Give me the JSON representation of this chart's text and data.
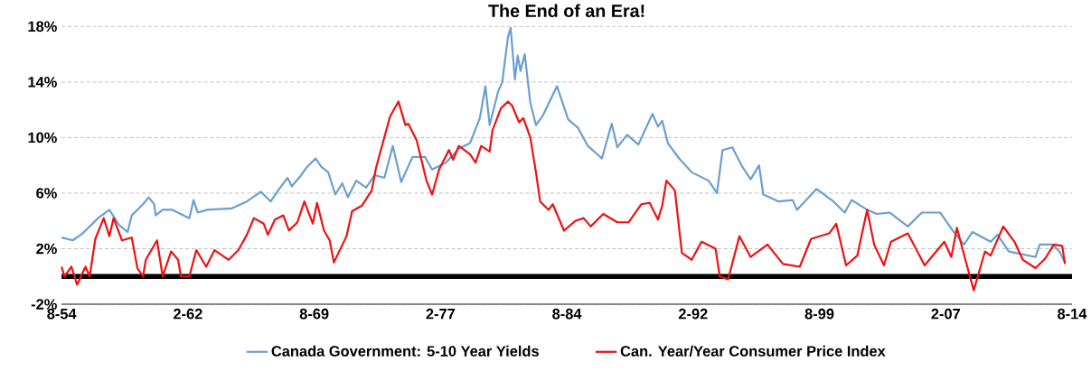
{
  "chart_data": {
    "type": "line",
    "title": "The End of an Era!",
    "series": [
      {
        "name": "Canada Government: 5-10 Year Yields",
        "color": "#6a9fd0",
        "x": [
          "1954-08",
          "1955-04",
          "1955-11",
          "1956-10",
          "1957-06",
          "1958-01",
          "1958-07",
          "1958-10",
          "1959-06",
          "1959-10",
          "1960-02",
          "1960-03",
          "1960-08",
          "1961-03",
          "1962-03",
          "1962-06",
          "1962-09",
          "1963-04",
          "1964-09",
          "1965-08",
          "1966-06",
          "1967-01",
          "1967-07",
          "1968-01",
          "1968-04",
          "1968-10",
          "1969-03",
          "1969-09",
          "1970-01",
          "1970-06",
          "1970-11",
          "1971-04",
          "1971-08",
          "1972-02",
          "1972-09",
          "1973-03",
          "1973-10",
          "1974-04",
          "1974-10",
          "1975-06",
          "1976-03",
          "1976-08",
          "1977-06",
          "1978-03",
          "1978-11",
          "1979-06",
          "1979-10",
          "1980-01",
          "1980-07",
          "1980-10",
          "1981-02",
          "1981-04",
          "1981-07",
          "1981-09",
          "1981-11",
          "1982-02",
          "1982-06",
          "1982-10",
          "1983-03",
          "1984-01",
          "1984-09",
          "1985-04",
          "1985-11",
          "1986-09",
          "1987-04",
          "1987-08",
          "1988-03",
          "1988-11",
          "1989-09",
          "1990-01",
          "1990-04",
          "1990-08",
          "1991-04",
          "1992-01",
          "1993-01",
          "1993-07",
          "1993-11",
          "1994-06",
          "1995-01",
          "1995-07",
          "1996-01",
          "1996-04",
          "1997-03",
          "1998-01",
          "1998-04",
          "1999-06",
          "2000-06",
          "2001-02",
          "2001-07",
          "2002-06",
          "2003-01",
          "2003-10",
          "2004-11",
          "2005-09",
          "2006-10",
          "2007-07",
          "2008-03",
          "2008-09",
          "2009-10",
          "2010-03",
          "2010-11",
          "2012-06",
          "2012-09",
          "2013-06",
          "2013-11",
          "2014-03"
        ],
        "values": [
          2.8,
          2.6,
          3.1,
          4.2,
          4.8,
          3.7,
          3.2,
          4.4,
          5.2,
          5.7,
          5.2,
          4.4,
          4.8,
          4.8,
          4.2,
          5.5,
          4.6,
          4.8,
          4.9,
          5.4,
          6.1,
          5.4,
          6.3,
          7.1,
          6.5,
          7.2,
          7.9,
          8.5,
          7.9,
          7.5,
          5.9,
          6.7,
          5.7,
          6.9,
          6.4,
          7.3,
          7.1,
          9.4,
          6.8,
          8.6,
          8.6,
          7.7,
          8.2,
          9.2,
          9.6,
          11.4,
          13.7,
          10.9,
          13.3,
          14.0,
          17.2,
          17.9,
          14.2,
          15.9,
          14.8,
          16.0,
          12.5,
          10.9,
          11.6,
          13.7,
          11.3,
          10.7,
          9.4,
          8.5,
          11.0,
          9.3,
          10.2,
          9.5,
          11.7,
          10.8,
          11.2,
          9.6,
          8.5,
          7.5,
          6.9,
          6.0,
          9.1,
          9.3,
          7.9,
          7.0,
          8.0,
          5.9,
          5.4,
          5.5,
          4.8,
          6.3,
          5.4,
          4.6,
          5.5,
          4.8,
          4.5,
          4.6,
          3.6,
          4.6,
          4.6,
          3.3,
          2.3,
          3.2,
          2.5,
          3.0,
          1.8,
          1.4,
          2.3,
          2.3,
          1.8,
          1.0
        ]
      },
      {
        "name": "Can. Year/Year Consumer Price Index",
        "color": "#ee1111",
        "x": [
          "1954-08",
          "1954-10",
          "1955-03",
          "1955-07",
          "1956-01",
          "1956-04",
          "1956-08",
          "1957-02",
          "1957-06",
          "1957-09",
          "1958-03",
          "1958-10",
          "1959-02",
          "1959-06",
          "1959-08",
          "1960-04",
          "1960-08",
          "1961-02",
          "1961-07",
          "1961-09",
          "1962-03",
          "1962-08",
          "1963-03",
          "1963-09",
          "1964-07",
          "1965-02",
          "1965-08",
          "1966-01",
          "1966-08",
          "1966-11",
          "1967-04",
          "1967-10",
          "1968-02",
          "1968-08",
          "1969-01",
          "1969-07",
          "1969-10",
          "1970-03",
          "1970-07",
          "1970-10",
          "1971-07",
          "1971-11",
          "1972-06",
          "1973-01",
          "1973-04",
          "1973-08",
          "1974-02",
          "1974-08",
          "1975-01",
          "1975-03",
          "1975-09",
          "1976-04",
          "1976-08",
          "1977-01",
          "1977-08",
          "1977-11",
          "1978-03",
          "1978-11",
          "1979-03",
          "1979-07",
          "1980-01",
          "1980-03",
          "1980-09",
          "1981-02",
          "1981-05",
          "1981-10",
          "1982-01",
          "1982-06",
          "1982-10",
          "1983-01",
          "1983-07",
          "1983-10",
          "1984-06",
          "1985-02",
          "1985-08",
          "1986-01",
          "1986-10",
          "1987-08",
          "1988-04",
          "1989-01",
          "1989-07",
          "1990-01",
          "1990-04",
          "1990-07",
          "1991-01",
          "1991-06",
          "1992-01",
          "1992-08",
          "1993-06",
          "1993-09",
          "1994-03",
          "1994-11",
          "1995-07",
          "1996-07",
          "1997-06",
          "1998-06",
          "1999-02",
          "2000-03",
          "2000-08",
          "2001-03",
          "2001-11",
          "2002-06",
          "2002-11",
          "2003-06",
          "2003-11",
          "2004-11",
          "2005-11",
          "2007-01",
          "2007-06",
          "2007-10",
          "2008-04",
          "2008-10",
          "2009-06",
          "2009-10",
          "2010-07",
          "2011-03",
          "2011-09",
          "2012-06",
          "2013-01",
          "2013-07",
          "2014-01",
          "2014-03"
        ],
        "values": [
          0.7,
          0.0,
          0.7,
          -0.6,
          0.7,
          0.0,
          2.7,
          4.2,
          2.9,
          4.2,
          2.6,
          2.8,
          0.6,
          0.0,
          1.2,
          2.6,
          0.0,
          1.8,
          1.2,
          0.0,
          0.0,
          1.9,
          0.7,
          1.9,
          1.2,
          1.9,
          3.0,
          4.2,
          3.8,
          3.0,
          4.1,
          4.4,
          3.3,
          3.9,
          5.4,
          3.8,
          5.3,
          3.3,
          2.6,
          1.0,
          2.9,
          4.7,
          5.1,
          6.2,
          7.8,
          9.3,
          11.5,
          12.6,
          10.9,
          11.0,
          9.8,
          6.9,
          5.9,
          7.7,
          9.1,
          8.4,
          9.4,
          8.8,
          8.2,
          9.4,
          9.0,
          10.5,
          12.1,
          12.6,
          12.3,
          11.1,
          11.4,
          10.0,
          7.5,
          5.4,
          4.8,
          5.2,
          3.3,
          4.0,
          4.2,
          3.6,
          4.5,
          3.9,
          3.9,
          5.2,
          5.3,
          4.1,
          5.1,
          6.9,
          6.2,
          1.7,
          1.2,
          2.5,
          2.0,
          0.0,
          -0.2,
          2.9,
          1.4,
          2.3,
          0.9,
          0.7,
          2.7,
          3.1,
          3.8,
          0.8,
          1.5,
          4.8,
          2.3,
          0.8,
          2.5,
          3.1,
          0.8,
          2.5,
          1.4,
          3.5,
          1.2,
          -1.0,
          1.8,
          1.5,
          3.6,
          2.5,
          1.2,
          0.6,
          1.3,
          2.3,
          2.2,
          0.9
        ]
      }
    ],
    "xlim": [
      "1954-08",
      "2014-08"
    ],
    "xticks": [
      {
        "value": "1954-08",
        "label": "8-54"
      },
      {
        "value": "1962-02",
        "label": "2-62"
      },
      {
        "value": "1969-08",
        "label": "8-69"
      },
      {
        "value": "1977-02",
        "label": "2-77"
      },
      {
        "value": "1984-08",
        "label": "8-84"
      },
      {
        "value": "1992-02",
        "label": "2-92"
      },
      {
        "value": "1999-08",
        "label": "8-99"
      },
      {
        "value": "2007-02",
        "label": "2-07"
      },
      {
        "value": "2014-08",
        "label": "8-14"
      }
    ],
    "ylim": [
      -2,
      18
    ],
    "yticks": [
      {
        "value": -2,
        "label": "-2%"
      },
      {
        "value": 2,
        "label": "2%"
      },
      {
        "value": 6,
        "label": "6%"
      },
      {
        "value": 10,
        "label": "10%"
      },
      {
        "value": 14,
        "label": "14%"
      },
      {
        "value": 18,
        "label": "18%"
      }
    ],
    "grid": "y",
    "legend": "bottom",
    "ref_lines": [
      {
        "axis": "y",
        "value": 0,
        "color": "#000000"
      }
    ]
  }
}
